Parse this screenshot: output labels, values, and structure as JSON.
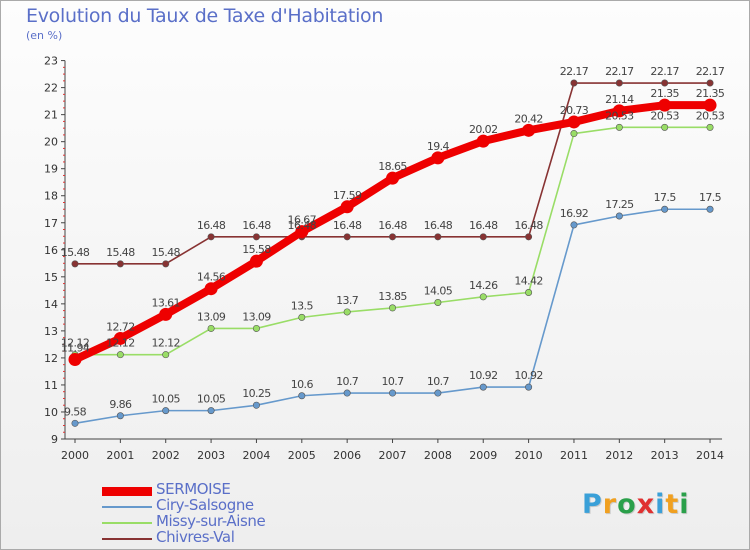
{
  "chart_data": {
    "type": "line",
    "title": "Evolution du Taux de Taxe d'Habitation",
    "subtitle": "(en %)",
    "x": [
      "2000",
      "2001",
      "2002",
      "2003",
      "2004",
      "2005",
      "2006",
      "2007",
      "2008",
      "2009",
      "2010",
      "2011",
      "2012",
      "2013",
      "2014"
    ],
    "yticks": [
      "9",
      "10",
      "11",
      "12",
      "13",
      "14",
      "15",
      "16",
      "17",
      "18",
      "19",
      "20",
      "21",
      "22",
      "23"
    ],
    "ylim": [
      9,
      23
    ],
    "grid": false,
    "legend_position": "bottom-left",
    "series": [
      {
        "name": "SERMOISE",
        "color": "#ee0000",
        "values": [
          11.94,
          12.72,
          13.61,
          14.56,
          15.58,
          16.67,
          17.59,
          18.65,
          19.4,
          20.02,
          20.42,
          20.73,
          21.14,
          21.35,
          21.35
        ],
        "labels": [
          "11.94",
          "12.72",
          "13.61",
          "14.56",
          "15.58",
          "16.67",
          "17.59",
          "18.65",
          "19.4",
          "20.02",
          "20.42",
          "20.73",
          "21.14",
          "21.35",
          "21.35"
        ]
      },
      {
        "name": "Ciry-Salsogne",
        "color": "#6699cc",
        "values": [
          9.58,
          9.86,
          10.05,
          10.05,
          10.25,
          10.6,
          10.7,
          10.7,
          10.7,
          10.92,
          10.92,
          16.92,
          17.25,
          17.5,
          17.5
        ],
        "labels": [
          "9.58",
          "9.86",
          "10.05",
          "10.05",
          "10.25",
          "10.6",
          "10.7",
          "10.7",
          "10.7",
          "10.92",
          "10.92",
          "16.92",
          "17.25",
          "17.5",
          "17.5"
        ]
      },
      {
        "name": "Missy-sur-Aisne",
        "color": "#99dd66",
        "values": [
          12.12,
          12.12,
          12.12,
          13.09,
          13.09,
          13.5,
          13.7,
          13.85,
          14.05,
          14.26,
          14.42,
          20.3,
          20.53,
          20.53,
          20.53
        ],
        "labels": [
          "12.12",
          "12.12",
          "12.12",
          "13.09",
          "13.09",
          "13.5",
          "13.7",
          "13.85",
          "14.05",
          "14.26",
          "14.42",
          "",
          "20.53",
          "20.53",
          "20.53"
        ]
      },
      {
        "name": "Chivres-Val",
        "color": "#883333",
        "values": [
          15.48,
          15.48,
          15.48,
          16.48,
          16.48,
          16.48,
          16.48,
          16.48,
          16.48,
          16.48,
          16.48,
          22.17,
          22.17,
          22.17,
          22.17
        ],
        "labels": [
          "15.48",
          "15.48",
          "15.48",
          "16.48",
          "16.48",
          "16.48",
          "16.48",
          "16.48",
          "16.48",
          "16.48",
          "16.48",
          "22.17",
          "22.17",
          "22.17",
          "22.17"
        ]
      }
    ]
  },
  "logo": {
    "letters": [
      {
        "ch": "P",
        "color": "#3aa0d8"
      },
      {
        "ch": "r",
        "color": "#f0a020"
      },
      {
        "ch": "o",
        "color": "#2aa04a"
      },
      {
        "ch": "x",
        "color": "#e03030"
      },
      {
        "ch": "i",
        "color": "#3aa0d8"
      },
      {
        "ch": "t",
        "color": "#f0a020"
      },
      {
        "ch": "i",
        "color": "#2aa04a"
      }
    ]
  }
}
